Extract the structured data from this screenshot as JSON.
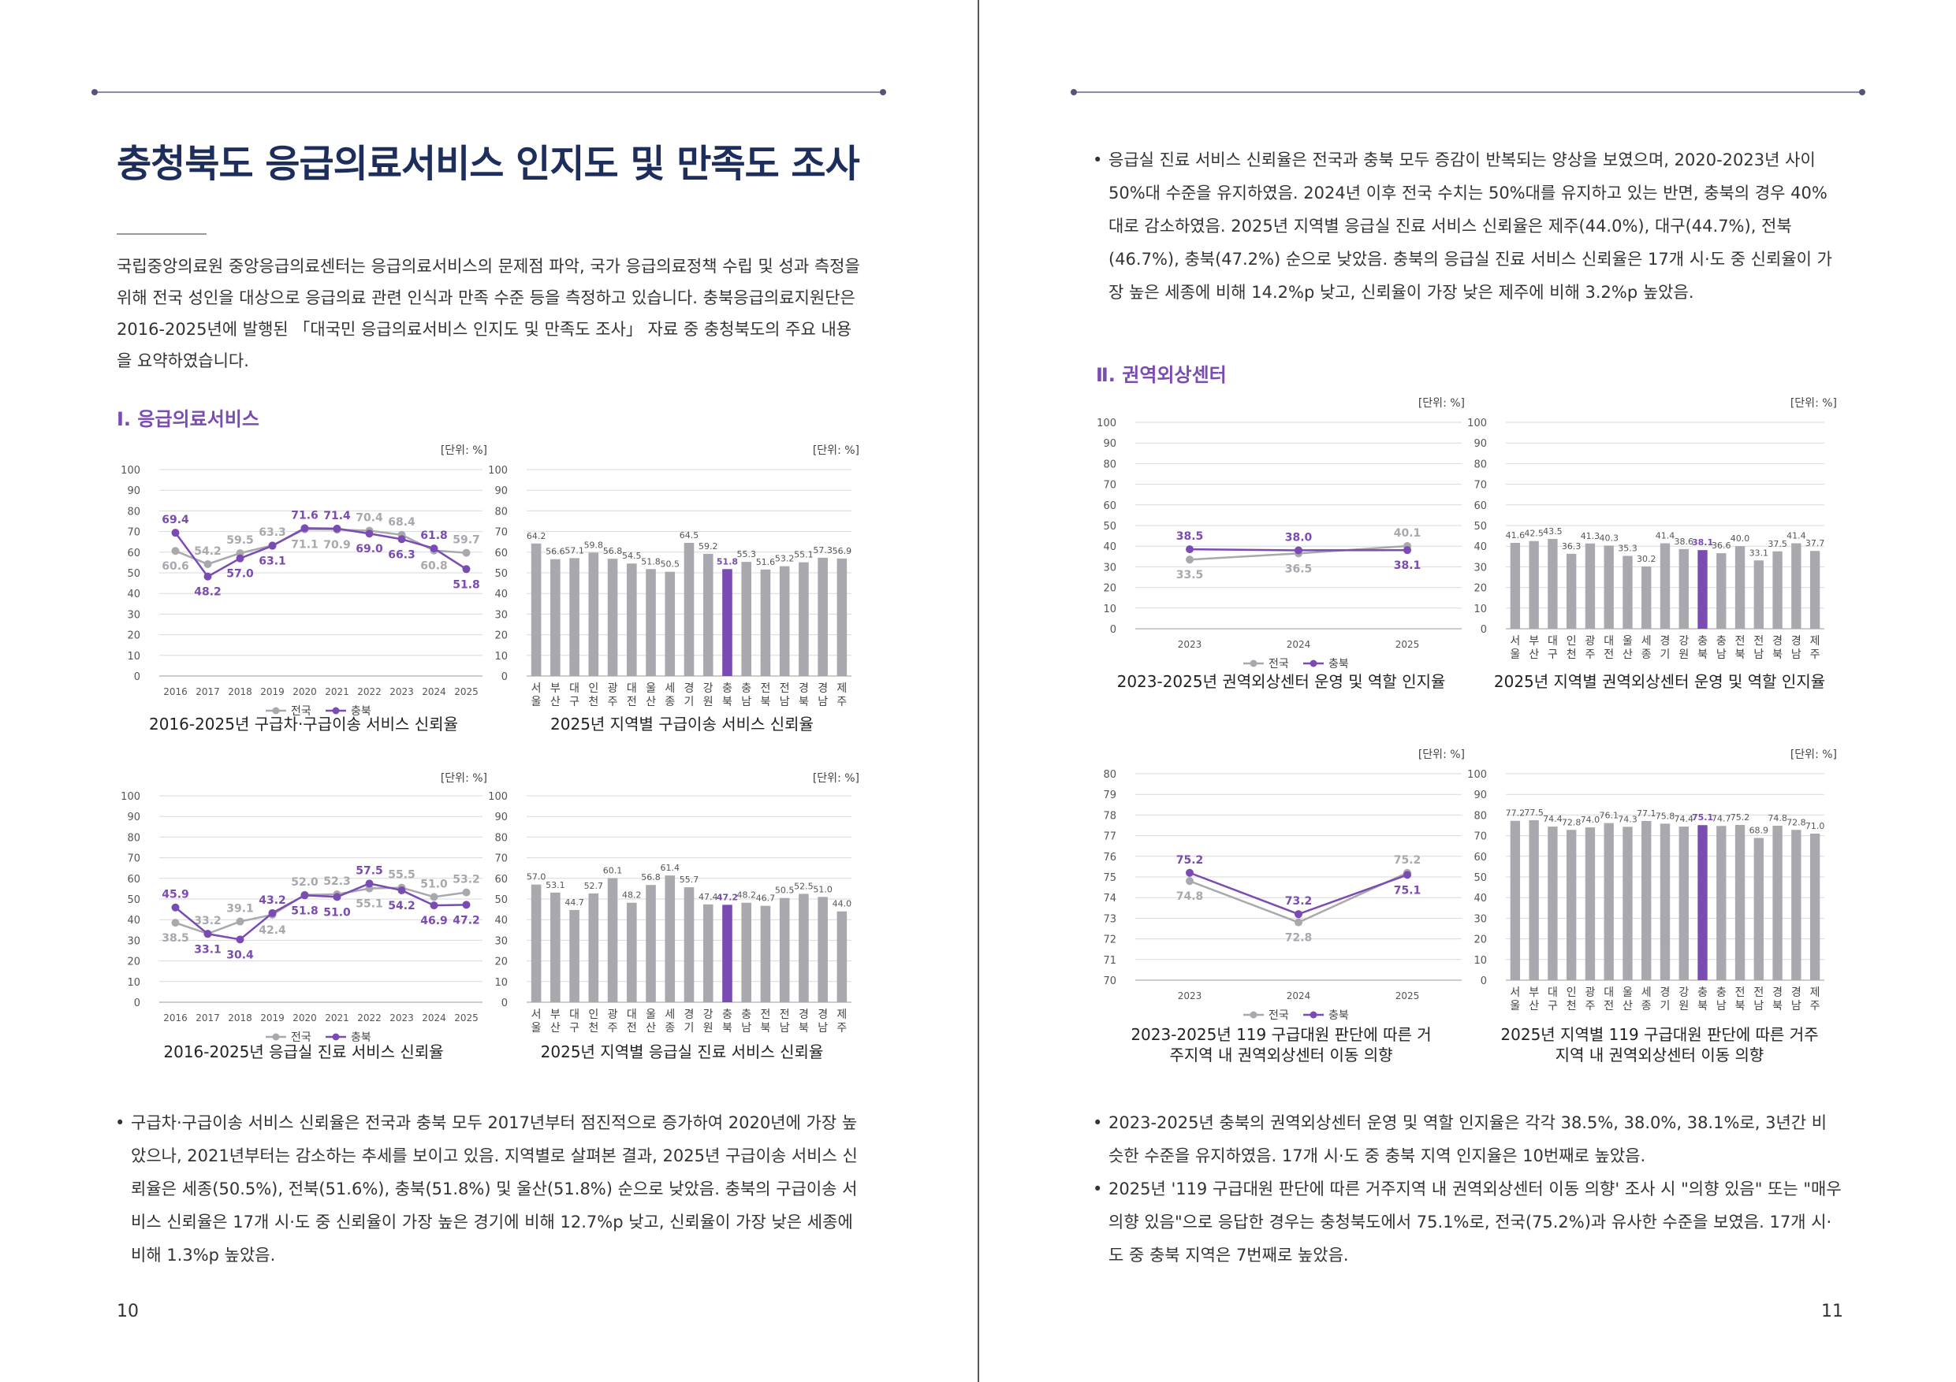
{
  "colors": {
    "national": "#a8a8ae",
    "chungbuk": "#7a4cb3",
    "bar": "#a8a8ae",
    "bar_highlight": "#7a4cb3",
    "title": "#1d2d5c",
    "section": "#7a4cb3"
  },
  "left": {
    "title": "충청북도 응급의료서비스 인지도 및 만족도 조사",
    "intro": "국립중앙의료원 중앙응급의료센터는 응급의료서비스의 문제점 파악, 국가 응급의료정책 수립 및 성과 측정을 위해 전국 성인을 대상으로 응급의료 관련 인식과 만족 수준 등을 측정하고 있습니다. 충북응급의료지원단은 2016-2025년에 발행된 「대국민 응급의료서비스 인지도 및 만족도 조사」 자료 중 충청북도의 주요 내용을 요약하였습니다.",
    "section": "Ⅰ. 응급의료서비스",
    "bullets": [
      "구급차·구급이송 서비스 신뢰율은 전국과 충북 모두 2017년부터 점진적으로 증가하여 2020년에 가장 높았으나, 2021년부터는 감소하는 추세를 보이고 있음. 지역별로 살펴본 결과, 2025년 구급이송 서비스 신뢰율은 세종(50.5%), 전북(51.6%), 충북(51.8%) 및 울산(51.8%) 순으로 낮았음. 충북의 구급이송 서비스 신뢰율은 17개 시·도 중 신뢰율이 가장 높은 경기에 비해 12.7%p 낮고, 신뢰율이 가장 낮은 세종에 비해 1.3%p 높았음."
    ],
    "page_number": "10"
  },
  "right": {
    "bullets_top": [
      "응급실 진료 서비스 신뢰율은 전국과 충북 모두 증감이 반복되는 양상을 보였으며, 2020-2023년 사이 50%대 수준을 유지하였음. 2024년 이후 전국 수치는 50%대를 유지하고 있는 반면, 충북의 경우 40%대로 감소하였음. 2025년 지역별 응급실 진료 서비스 신뢰율은 제주(44.0%), 대구(44.7%), 전북(46.7%), 충북(47.2%) 순으로 낮았음. 충북의 응급실 진료 서비스 신뢰율은 17개 시·도 중 신뢰율이 가장 높은 세종에 비해 14.2%p 낮고, 신뢰율이 가장 낮은 제주에 비해 3.2%p 높았음."
    ],
    "section": "Ⅱ. 권역외상센터",
    "bullets_bottom": [
      "2023-2025년 충북의 권역외상센터 운영 및 역할 인지율은 각각 38.5%, 38.0%, 38.1%로, 3년간 비슷한 수준을 유지하였음. 17개 시·도 중 충북 지역 인지율은 10번째로 높았음.",
      "2025년 '119 구급대원 판단에 따른 거주지역 내 권역외상센터 이동 의향' 조사 시 \"의향 있음\" 또는 \"매우 의향 있음\"으로 응답한 경우는 충청북도에서 75.1%로, 전국(75.2%)과 유사한 수준을 보였음. 17개 시·도 중 충북 지역은 7번째로 높았음."
    ],
    "page_number": "11"
  },
  "chart_data": [
    {
      "id": "c1",
      "type": "line",
      "unit": "[단위: %]",
      "title": "2016-2025년 구급차·구급이송 서비스 신뢰율",
      "categories": [
        "2016",
        "2017",
        "2018",
        "2019",
        "2020",
        "2021",
        "2022",
        "2023",
        "2024",
        "2025"
      ],
      "series": [
        {
          "name": "전국",
          "values": [
            60.6,
            54.2,
            59.5,
            63.3,
            71.1,
            70.9,
            70.4,
            68.4,
            60.8,
            59.7
          ]
        },
        {
          "name": "충북",
          "values": [
            69.4,
            48.2,
            57.0,
            63.1,
            71.6,
            71.4,
            69.0,
            66.3,
            61.8,
            51.8
          ]
        }
      ],
      "ylim": [
        0,
        100
      ],
      "yticks": [
        0,
        10,
        20,
        30,
        40,
        50,
        60,
        70,
        80,
        90,
        100
      ]
    },
    {
      "id": "c2",
      "type": "bar",
      "unit": "[단위: %]",
      "title": "2025년 지역별 구급이송 서비스 신뢰율",
      "categories": [
        "서울",
        "부산",
        "대구",
        "인천",
        "광주",
        "대전",
        "울산",
        "세종",
        "경기",
        "강원",
        "충북",
        "충남",
        "전북",
        "전남",
        "경북",
        "경남",
        "제주"
      ],
      "values": [
        64.2,
        56.6,
        57.1,
        59.8,
        56.8,
        54.5,
        51.8,
        50.5,
        64.5,
        59.2,
        51.8,
        55.3,
        51.6,
        53.2,
        55.1,
        57.3,
        56.9
      ],
      "highlight": "충북",
      "ylim": [
        0,
        100
      ],
      "yticks": [
        0,
        10,
        20,
        30,
        40,
        50,
        60,
        70,
        80,
        90,
        100
      ]
    },
    {
      "id": "c3",
      "type": "line",
      "unit": "[단위: %]",
      "title": "2016-2025년 응급실 진료 서비스 신뢰율",
      "categories": [
        "2016",
        "2017",
        "2018",
        "2019",
        "2020",
        "2021",
        "2022",
        "2023",
        "2024",
        "2025"
      ],
      "series": [
        {
          "name": "전국",
          "values": [
            38.5,
            33.2,
            39.1,
            42.4,
            52.0,
            52.3,
            55.1,
            55.5,
            51.0,
            53.2
          ]
        },
        {
          "name": "충북",
          "values": [
            45.9,
            33.1,
            30.4,
            43.2,
            51.8,
            51.0,
            57.5,
            54.2,
            46.9,
            47.2
          ]
        }
      ],
      "ylim": [
        0,
        100
      ],
      "yticks": [
        0,
        10,
        20,
        30,
        40,
        50,
        60,
        70,
        80,
        90,
        100
      ]
    },
    {
      "id": "c4",
      "type": "bar",
      "unit": "[단위: %]",
      "title": "2025년 지역별 응급실 진료 서비스 신뢰율",
      "categories": [
        "서울",
        "부산",
        "대구",
        "인천",
        "광주",
        "대전",
        "울산",
        "세종",
        "경기",
        "강원",
        "충북",
        "충남",
        "전북",
        "전남",
        "경북",
        "경남",
        "제주"
      ],
      "values": [
        57.0,
        53.1,
        44.7,
        52.7,
        60.1,
        48.2,
        56.8,
        61.4,
        55.7,
        47.4,
        47.2,
        48.2,
        46.7,
        50.5,
        52.5,
        51.0,
        44.0
      ],
      "highlight": "충북",
      "ylim": [
        0,
        100
      ],
      "yticks": [
        0,
        10,
        20,
        30,
        40,
        50,
        60,
        70,
        80,
        90,
        100
      ]
    },
    {
      "id": "c5",
      "type": "line",
      "unit": "[단위: %]",
      "title": "2023-2025년 권역외상센터 운영 및 역할 인지율",
      "categories": [
        "2023",
        "2024",
        "2025"
      ],
      "series": [
        {
          "name": "전국",
          "values": [
            33.5,
            36.5,
            40.1
          ]
        },
        {
          "name": "충북",
          "values": [
            38.5,
            38.0,
            38.1
          ]
        }
      ],
      "ylim": [
        0,
        100
      ],
      "yticks": [
        0,
        10,
        20,
        30,
        40,
        50,
        60,
        70,
        80,
        90,
        100
      ]
    },
    {
      "id": "c6",
      "type": "bar",
      "unit": "[단위: %]",
      "title": "2025년 지역별 권역외상센터 운영 및 역할 인지율",
      "categories": [
        "서울",
        "부산",
        "대구",
        "인천",
        "광주",
        "대전",
        "울산",
        "세종",
        "경기",
        "강원",
        "충북",
        "충남",
        "전북",
        "전남",
        "경북",
        "경남",
        "제주"
      ],
      "values": [
        41.6,
        42.5,
        43.5,
        36.3,
        41.3,
        40.3,
        35.3,
        30.2,
        41.4,
        38.6,
        38.1,
        36.6,
        40.0,
        33.1,
        37.5,
        41.4,
        37.7
      ],
      "highlight": "충북",
      "ylim": [
        0,
        100
      ],
      "yticks": [
        0,
        10,
        20,
        30,
        40,
        50,
        60,
        70,
        80,
        90,
        100
      ]
    },
    {
      "id": "c7",
      "type": "line",
      "unit": "[단위: %]",
      "title": "2023-2025년 119 구급대원 판단에 따른 거주지역 내 권역외상센터 이동 의향",
      "categories": [
        "2023",
        "2024",
        "2025"
      ],
      "series": [
        {
          "name": "전국",
          "values": [
            74.8,
            72.8,
            75.2
          ]
        },
        {
          "name": "충북",
          "values": [
            75.2,
            73.2,
            75.1
          ]
        }
      ],
      "ylim": [
        70,
        80
      ],
      "yticks": [
        70,
        71,
        72,
        73,
        74,
        75,
        76,
        77,
        78,
        79,
        80
      ]
    },
    {
      "id": "c8",
      "type": "bar",
      "unit": "[단위: %]",
      "title": "2025년 지역별 119 구급대원 판단에 따른 거주지역 내 권역외상센터 이동 의향",
      "categories": [
        "서울",
        "부산",
        "대구",
        "인천",
        "광주",
        "대전",
        "울산",
        "세종",
        "경기",
        "강원",
        "충북",
        "충남",
        "전북",
        "전남",
        "경북",
        "경남",
        "제주"
      ],
      "values": [
        77.2,
        77.5,
        74.4,
        72.8,
        74.0,
        76.1,
        74.3,
        77.1,
        75.8,
        74.4,
        75.1,
        74.7,
        75.2,
        68.9,
        74.8,
        72.8,
        71.0
      ],
      "highlight": "충북",
      "ylim": [
        0,
        100
      ],
      "yticks": [
        0,
        10,
        20,
        30,
        40,
        50,
        60,
        70,
        80,
        90,
        100
      ]
    }
  ]
}
